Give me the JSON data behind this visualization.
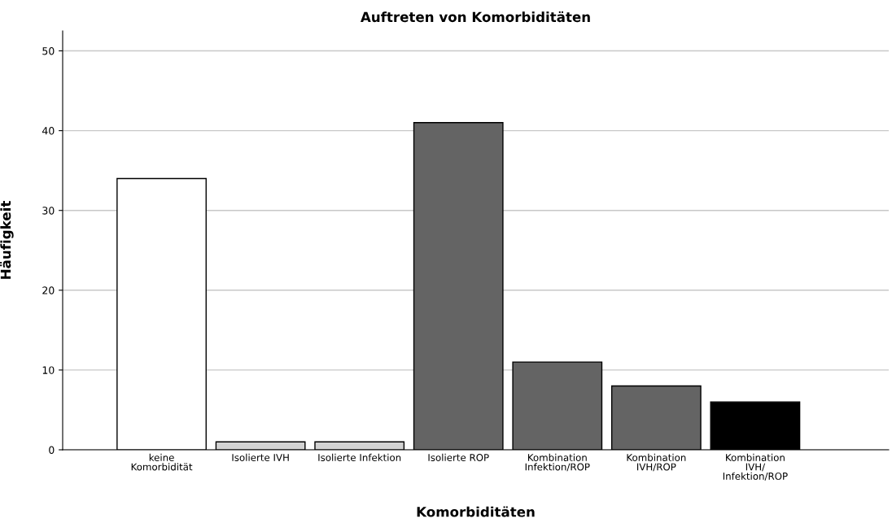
{
  "chart_data": {
    "type": "bar",
    "title": "Auftreten von Komorbiditäten",
    "xlabel": "Komorbiditäten",
    "ylabel": "Häufigkeit",
    "categories": [
      "keine\nKomorbidität",
      "Isolierte IVH",
      "Isolierte Infektion",
      "Isolierte ROP",
      "Kombination\nInfektion/ROP",
      "Kombination\nIVH/ROP",
      "Kombination\nIVH/\nInfektion/ROP"
    ],
    "values": [
      34,
      1,
      1,
      41,
      11,
      8,
      6
    ],
    "colors": [
      "#ffffff",
      "#d3d3d3",
      "#d3d3d3",
      "#646464",
      "#646464",
      "#646464",
      "#000000"
    ],
    "ylim": [
      0,
      52.5
    ],
    "yticks": [
      0,
      10,
      20,
      30,
      40,
      50
    ],
    "grid": "y"
  }
}
